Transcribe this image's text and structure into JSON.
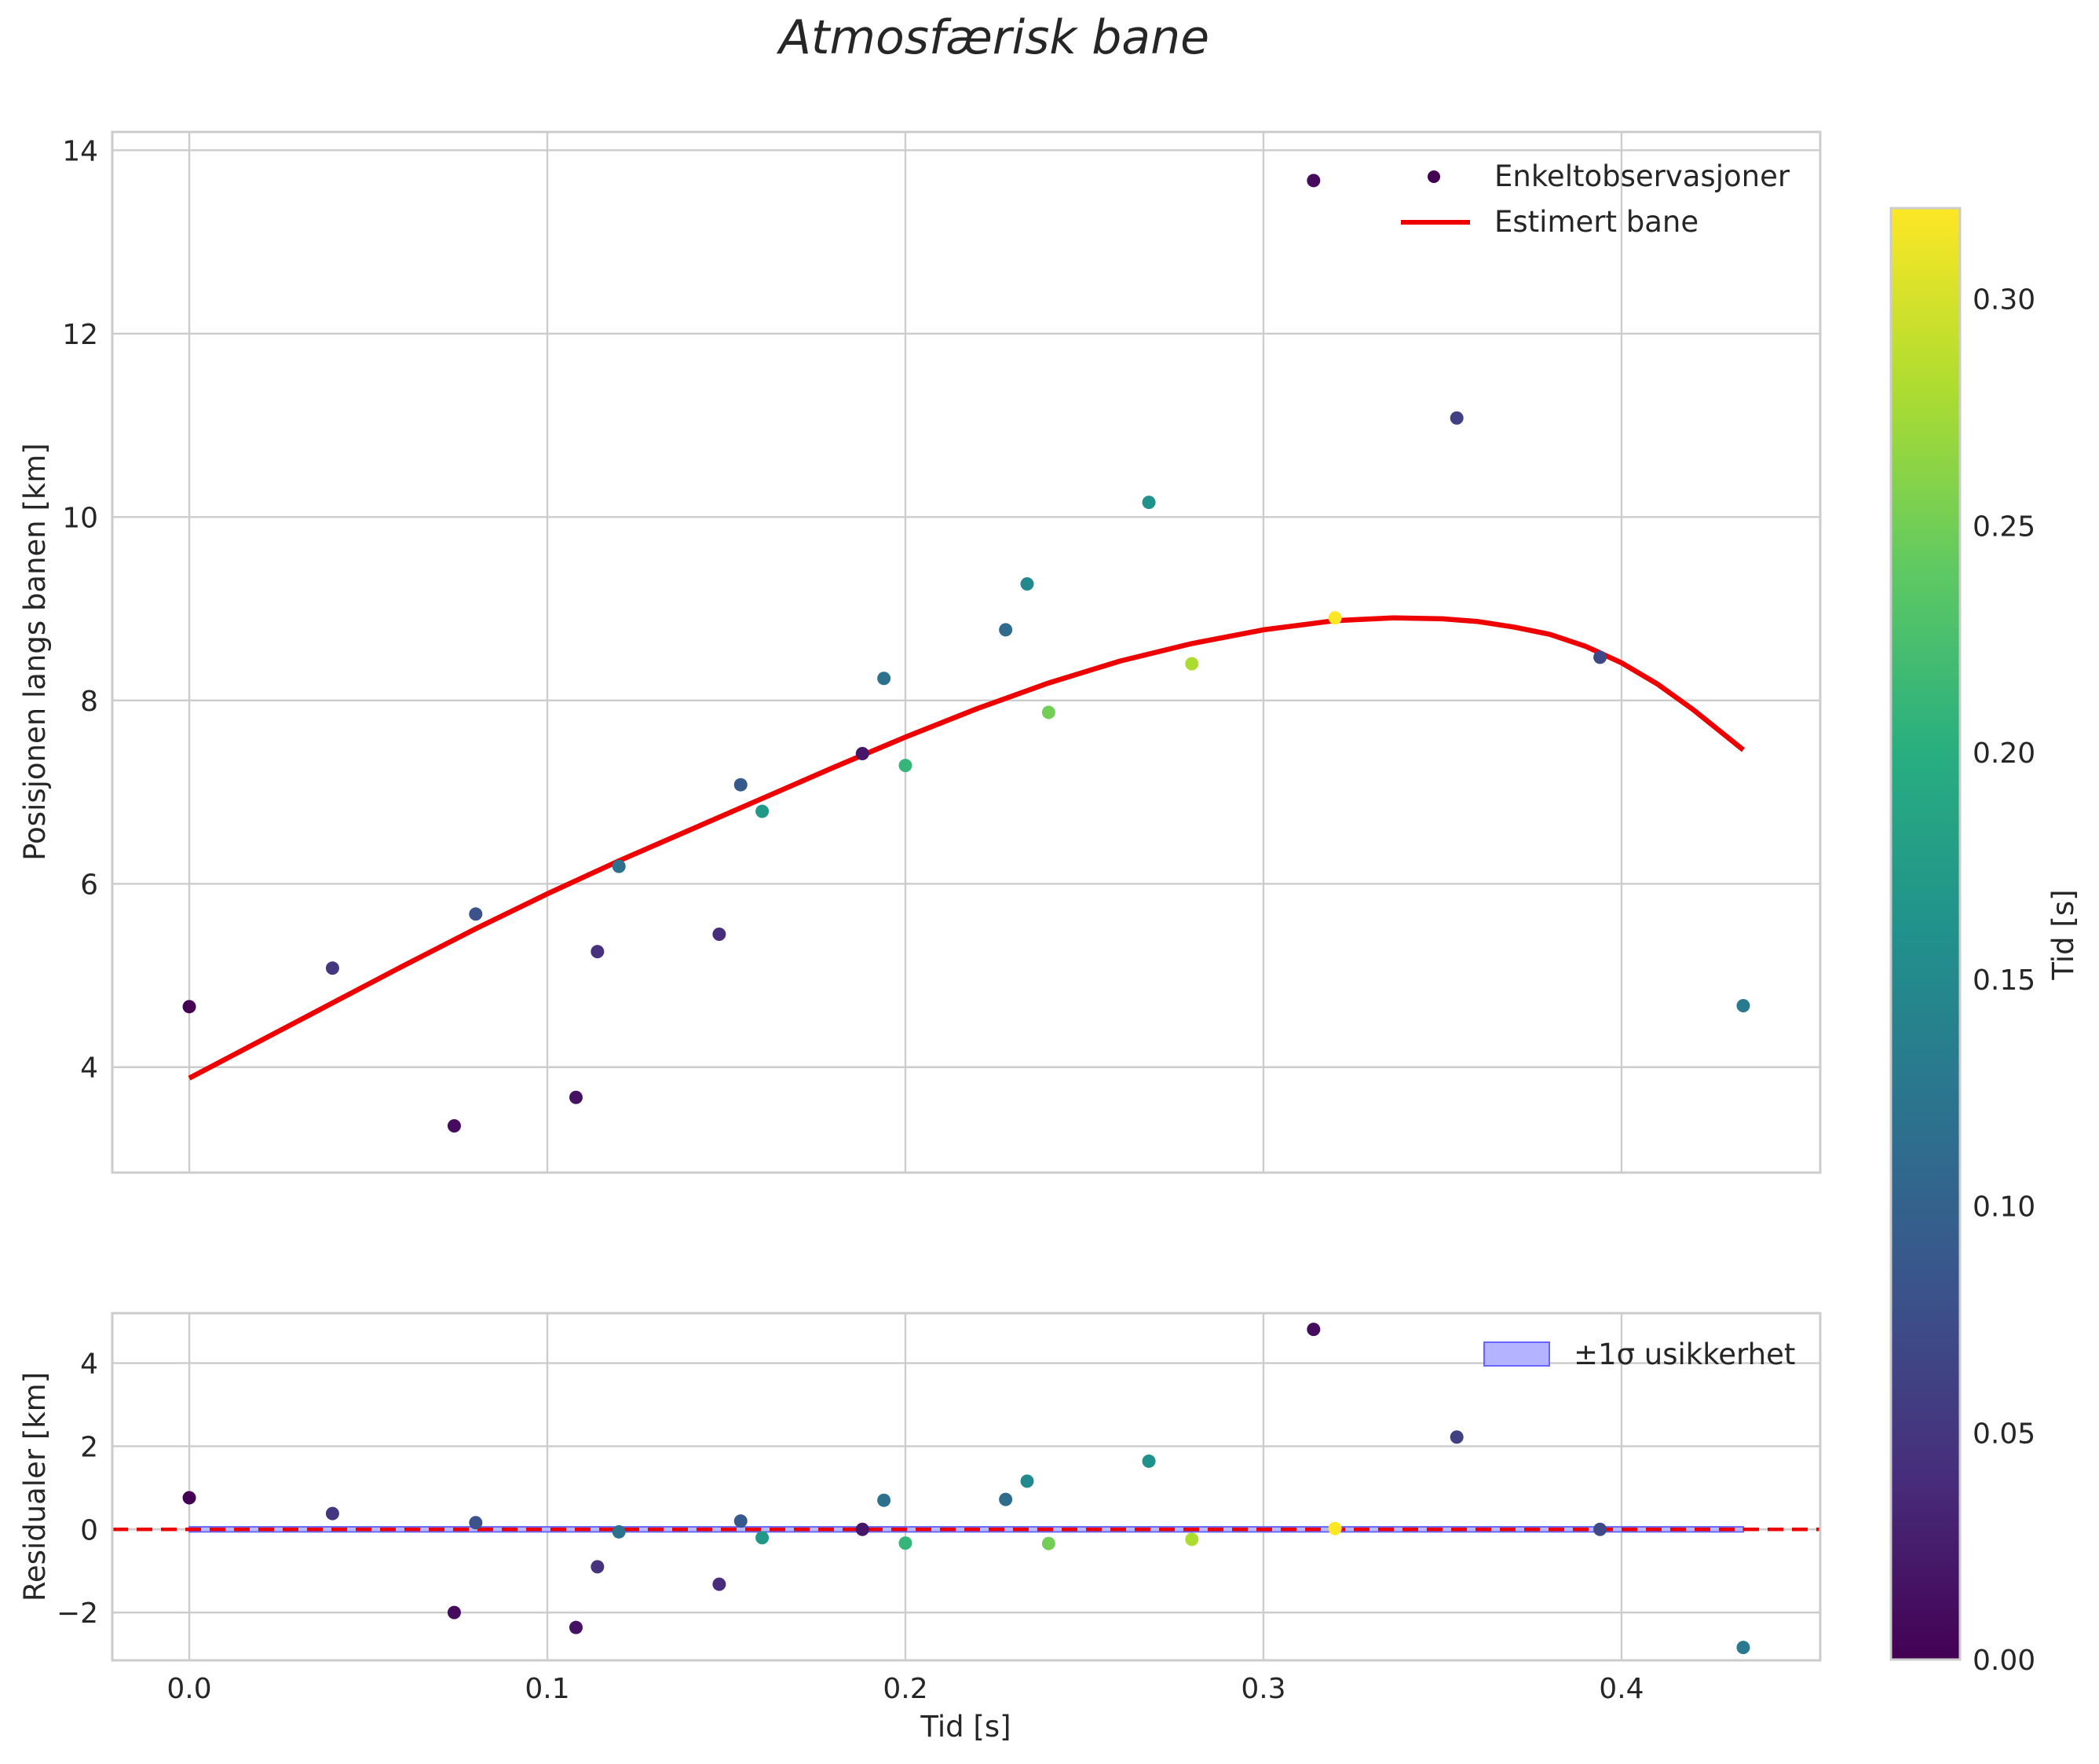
{
  "chart_data": [
    {
      "type": "scatter",
      "panel": "main",
      "title": "Atmosfærisk bane",
      "xlabel": "",
      "ylabel": "Posisjonen langs banen [km]",
      "xlim": [
        -0.0215,
        0.4555
      ],
      "ylim": [
        2.85,
        14.2
      ],
      "x_ticks": [
        0.0,
        0.1,
        0.2,
        0.3,
        0.4
      ],
      "y_ticks": [
        4,
        6,
        8,
        10,
        12,
        14
      ],
      "y_tick_labels": [
        "4",
        "6",
        "8",
        "10",
        "12",
        "14"
      ],
      "grid": true,
      "legend_position": "top-right",
      "series": [
        {
          "name": "Enkeltobservasjoner",
          "kind": "points",
          "points": [
            {
              "x": 0.0,
              "y": 4.66,
              "c": 0.0
            },
            {
              "x": 0.04,
              "y": 5.08,
              "c": 0.05
            },
            {
              "x": 0.074,
              "y": 3.36,
              "c": 0.01
            },
            {
              "x": 0.08,
              "y": 5.67,
              "c": 0.08
            },
            {
              "x": 0.108,
              "y": 3.67,
              "c": 0.015
            },
            {
              "x": 0.114,
              "y": 5.26,
              "c": 0.045
            },
            {
              "x": 0.12,
              "y": 6.19,
              "c": 0.12
            },
            {
              "x": 0.148,
              "y": 5.45,
              "c": 0.04
            },
            {
              "x": 0.154,
              "y": 7.08,
              "c": 0.09
            },
            {
              "x": 0.16,
              "y": 6.79,
              "c": 0.17
            },
            {
              "x": 0.188,
              "y": 7.42,
              "c": 0.02
            },
            {
              "x": 0.194,
              "y": 8.24,
              "c": 0.12
            },
            {
              "x": 0.2,
              "y": 7.29,
              "c": 0.21
            },
            {
              "x": 0.228,
              "y": 8.77,
              "c": 0.11
            },
            {
              "x": 0.234,
              "y": 9.27,
              "c": 0.15
            },
            {
              "x": 0.24,
              "y": 7.87,
              "c": 0.25
            },
            {
              "x": 0.268,
              "y": 10.16,
              "c": 0.16
            },
            {
              "x": 0.28,
              "y": 8.4,
              "c": 0.28
            },
            {
              "x": 0.314,
              "y": 13.67,
              "c": 0.01
            },
            {
              "x": 0.32,
              "y": 8.9,
              "c": 0.32
            },
            {
              "x": 0.354,
              "y": 11.08,
              "c": 0.06
            },
            {
              "x": 0.394,
              "y": 8.47,
              "c": 0.07
            },
            {
              "x": 0.434,
              "y": 4.67,
              "c": 0.13
            }
          ]
        },
        {
          "name": "Estimert bane",
          "kind": "line",
          "color": "#ee0000",
          "x": [
            0.0,
            0.02,
            0.04,
            0.06,
            0.08,
            0.1,
            0.12,
            0.14,
            0.16,
            0.18,
            0.2,
            0.22,
            0.24,
            0.26,
            0.28,
            0.3,
            0.32,
            0.336,
            0.35,
            0.36,
            0.37,
            0.38,
            0.39,
            0.4,
            0.41,
            0.42,
            0.434
          ],
          "y": [
            3.88,
            4.29,
            4.7,
            5.11,
            5.51,
            5.89,
            6.25,
            6.59,
            6.93,
            7.27,
            7.6,
            7.91,
            8.19,
            8.43,
            8.62,
            8.77,
            8.87,
            8.9,
            8.89,
            8.86,
            8.8,
            8.72,
            8.59,
            8.41,
            8.18,
            7.9,
            7.46
          ]
        }
      ]
    },
    {
      "type": "scatter",
      "panel": "residuals",
      "xlabel": "Tid [s]",
      "ylabel": "Residualer [km]",
      "xlim": [
        -0.0215,
        0.4555
      ],
      "ylim": [
        -3.15,
        5.2
      ],
      "x_ticks": [
        0.0,
        0.1,
        0.2,
        0.3,
        0.4
      ],
      "x_tick_labels": [
        "0.0",
        "0.1",
        "0.2",
        "0.3",
        "0.4"
      ],
      "y_ticks": [
        -2,
        0,
        2,
        4
      ],
      "y_tick_labels": [
        "−2",
        "0",
        "2",
        "4"
      ],
      "grid": true,
      "legend_position": "top-right",
      "series": [
        {
          "name": "Residualer",
          "kind": "points",
          "points": [
            {
              "x": 0.0,
              "y": 0.76,
              "c": 0.0
            },
            {
              "x": 0.04,
              "y": 0.38,
              "c": 0.05
            },
            {
              "x": 0.074,
              "y": -2.0,
              "c": 0.01
            },
            {
              "x": 0.08,
              "y": 0.16,
              "c": 0.08
            },
            {
              "x": 0.108,
              "y": -2.36,
              "c": 0.015
            },
            {
              "x": 0.114,
              "y": -0.9,
              "c": 0.045
            },
            {
              "x": 0.12,
              "y": -0.06,
              "c": 0.12
            },
            {
              "x": 0.148,
              "y": -1.32,
              "c": 0.04
            },
            {
              "x": 0.154,
              "y": 0.2,
              "c": 0.09
            },
            {
              "x": 0.16,
              "y": -0.2,
              "c": 0.17
            },
            {
              "x": 0.188,
              "y": 0.0,
              "c": 0.02
            },
            {
              "x": 0.194,
              "y": 0.7,
              "c": 0.12
            },
            {
              "x": 0.2,
              "y": -0.33,
              "c": 0.21
            },
            {
              "x": 0.228,
              "y": 0.72,
              "c": 0.11
            },
            {
              "x": 0.234,
              "y": 1.16,
              "c": 0.15
            },
            {
              "x": 0.24,
              "y": -0.34,
              "c": 0.25
            },
            {
              "x": 0.268,
              "y": 1.64,
              "c": 0.16
            },
            {
              "x": 0.28,
              "y": -0.24,
              "c": 0.28
            },
            {
              "x": 0.314,
              "y": 4.81,
              "c": 0.01
            },
            {
              "x": 0.32,
              "y": 0.02,
              "c": 0.32
            },
            {
              "x": 0.354,
              "y": 2.22,
              "c": 0.06
            },
            {
              "x": 0.394,
              "y": 0.0,
              "c": 0.07
            },
            {
              "x": 0.434,
              "y": -2.84,
              "c": 0.13
            }
          ]
        },
        {
          "name": "±1σ usikkerhet",
          "kind": "band",
          "color": "#6666ff",
          "x_range": [
            0.0,
            0.434
          ],
          "y_range": [
            -0.06,
            0.06
          ]
        },
        {
          "name": "zero-line",
          "kind": "hline",
          "y": 0,
          "color": "#ee0000",
          "style": "dashed"
        }
      ]
    }
  ],
  "colorbar": {
    "label": "Tid [s]",
    "colormap": "viridis",
    "range": [
      0.0,
      0.32
    ],
    "ticks": [
      0.0,
      0.05,
      0.1,
      0.15,
      0.2,
      0.25,
      0.3
    ],
    "tick_labels": [
      "0.00",
      "0.05",
      "0.10",
      "0.15",
      "0.20",
      "0.25",
      "0.30"
    ]
  },
  "colors": {
    "grid": "#cccccc",
    "fit_line": "#ee0000",
    "band_fill": "#b3b3ff",
    "band_edge": "#6666ff"
  }
}
